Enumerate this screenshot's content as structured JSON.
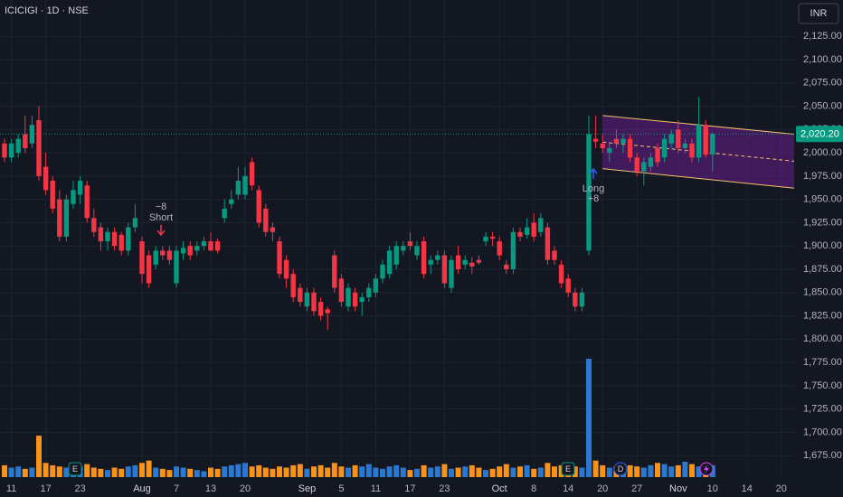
{
  "chart_data": {
    "type": "candlestick",
    "title": "ICICIGI · 1D · NSE",
    "currency": "INR",
    "categories": [
      null,
      "11",
      null,
      null,
      null,
      null,
      "17",
      null,
      null,
      null,
      null,
      "23",
      null,
      null,
      null,
      null,
      null,
      null,
      null,
      null,
      "Aug",
      null,
      null,
      null,
      null,
      "7",
      null,
      null,
      null,
      null,
      "13",
      null,
      null,
      null,
      null,
      "20",
      null,
      null,
      null,
      null,
      null,
      null,
      null,
      null,
      "Sep",
      null,
      null,
      null,
      null,
      "5",
      null,
      null,
      null,
      null,
      "11",
      null,
      null,
      null,
      null,
      "17",
      null,
      null,
      null,
      null,
      "23",
      null,
      null,
      null,
      null,
      null,
      null,
      null,
      "Oct",
      null,
      null,
      null,
      null,
      "8",
      null,
      null,
      null,
      null,
      "14",
      null,
      null,
      null,
      null,
      "20",
      null,
      null,
      null,
      null,
      "27",
      null,
      null,
      null,
      null,
      null,
      "Nov",
      null,
      null,
      null,
      null,
      "10",
      null,
      null,
      null,
      null,
      "14",
      null,
      null,
      null,
      null,
      "20",
      null
    ],
    "open": [
      2010,
      1995,
      2000,
      2020,
      2010,
      2035,
      1985,
      1970,
      1950,
      1910,
      1945,
      1955,
      1965,
      1930,
      1920,
      1905,
      1915,
      1912,
      1895,
      1920,
      1905,
      1890,
      1880,
      1895,
      1895,
      1860,
      1892,
      1900,
      1895,
      1900,
      1905,
      1905,
      1930,
      1945,
      1955,
      1955,
      1990,
      1960,
      1940,
      1920,
      1905,
      1885,
      1870,
      1855,
      1835,
      1850,
      1840,
      1832,
      1890,
      1865,
      1835,
      1850,
      1840,
      1845,
      1850,
      1865,
      1870,
      1880,
      1895,
      1905,
      1890,
      1905,
      1880,
      1885,
      1890,
      1855,
      1890,
      1880,
      1882,
      1885,
      1905,
      1910,
      1905,
      1880,
      1875,
      1915,
      1912,
      1925,
      1915,
      1920,
      1895,
      1880,
      1865,
      1850,
      1835,
      1895,
      2015,
      2010,
      2000,
      2015,
      2010,
      2015,
      1995,
      1980,
      1985,
      2005,
      1995,
      2010,
      2025,
      2005,
      2010,
      1995,
      2030,
      1998,
      null,
      null,
      null,
      null,
      null,
      null,
      null,
      null,
      null,
      null,
      null
    ],
    "high": [
      2015,
      2015,
      2020,
      2040,
      2040,
      2050,
      2000,
      1975,
      1960,
      1955,
      1970,
      1975,
      1970,
      1940,
      1925,
      1920,
      1920,
      1915,
      1925,
      1945,
      1910,
      1895,
      1900,
      1900,
      1900,
      1900,
      1905,
      1905,
      1905,
      1910,
      1915,
      1908,
      1950,
      1960,
      1985,
      1985,
      1995,
      1965,
      1945,
      1925,
      1910,
      1890,
      1875,
      1860,
      1855,
      1855,
      1845,
      1835,
      1895,
      1870,
      1860,
      1855,
      1850,
      1860,
      1870,
      1885,
      1900,
      1905,
      1905,
      1915,
      1905,
      1910,
      1890,
      1895,
      1895,
      1890,
      1900,
      1890,
      1888,
      1890,
      1915,
      1915,
      1910,
      1885,
      1920,
      1920,
      1930,
      1935,
      1935,
      1925,
      1900,
      1885,
      1870,
      1855,
      1855,
      2040,
      2040,
      2020,
      2010,
      2025,
      2020,
      2020,
      2000,
      1995,
      2000,
      2010,
      2020,
      2025,
      2035,
      2015,
      2015,
      2060,
      2035,
      2022,
      null,
      null,
      null,
      null,
      null,
      null,
      null,
      null,
      null,
      null,
      null
    ],
    "low": [
      1990,
      1990,
      1995,
      2000,
      2005,
      1970,
      1955,
      1935,
      1905,
      1905,
      1940,
      1945,
      1925,
      1910,
      1895,
      1895,
      1895,
      1890,
      1890,
      1915,
      1860,
      1855,
      1875,
      1885,
      1880,
      1855,
      1885,
      1885,
      1890,
      1895,
      1895,
      1892,
      1925,
      1940,
      1950,
      1950,
      1960,
      1920,
      1910,
      1905,
      1865,
      1855,
      1840,
      1835,
      1830,
      1825,
      1820,
      1810,
      1850,
      1835,
      1830,
      1830,
      1825,
      1840,
      1845,
      1860,
      1865,
      1875,
      1890,
      1895,
      1885,
      1865,
      1870,
      1880,
      1855,
      1850,
      1870,
      1875,
      1870,
      1880,
      1900,
      1900,
      1885,
      1870,
      1870,
      1905,
      1908,
      1905,
      1910,
      1880,
      1880,
      1855,
      1845,
      1830,
      1830,
      1890,
      2005,
      2000,
      1990,
      2005,
      2000,
      1990,
      1975,
      1965,
      1980,
      1985,
      1990,
      2005,
      2000,
      2000,
      1990,
      1990,
      1995,
      1980,
      null,
      null,
      null,
      null,
      null,
      null,
      null,
      null,
      null,
      null,
      null
    ],
    "close": [
      1995,
      2010,
      2015,
      2005,
      2030,
      1975,
      1960,
      1940,
      1910,
      1950,
      1960,
      1970,
      1930,
      1915,
      1905,
      1915,
      1900,
      1895,
      1920,
      1930,
      1870,
      1860,
      1895,
      1890,
      1885,
      1895,
      1898,
      1890,
      1900,
      1905,
      1895,
      1895,
      1940,
      1950,
      1970,
      1975,
      1965,
      1925,
      1915,
      1915,
      1870,
      1865,
      1845,
      1840,
      1850,
      1830,
      1825,
      1828,
      1855,
      1840,
      1855,
      1835,
      1845,
      1855,
      1865,
      1880,
      1895,
      1900,
      1900,
      1900,
      1900,
      1870,
      1885,
      1890,
      1860,
      1885,
      1875,
      1885,
      1878,
      1882,
      1910,
      1908,
      1890,
      1875,
      1915,
      1910,
      1920,
      1910,
      1930,
      1885,
      1885,
      1860,
      1850,
      1835,
      1850,
      2020,
      2012,
      2005,
      2005,
      2010,
      2015,
      1995,
      1980,
      1990,
      1995,
      1990,
      2015,
      2020,
      2005,
      2010,
      1995,
      2030,
      1998,
      2020.2,
      null,
      null,
      null,
      null,
      null,
      null,
      null,
      null,
      null,
      null,
      null
    ],
    "volume": [
      10,
      8,
      9,
      7,
      8,
      35,
      12,
      10,
      9,
      8,
      7,
      9,
      11,
      8,
      7,
      6,
      8,
      7,
      9,
      10,
      12,
      14,
      8,
      7,
      6,
      9,
      8,
      7,
      6,
      5,
      8,
      7,
      9,
      10,
      11,
      12,
      9,
      10,
      8,
      7,
      9,
      8,
      10,
      11,
      7,
      9,
      10,
      8,
      12,
      9,
      8,
      10,
      9,
      11,
      8,
      7,
      9,
      10,
      8,
      6,
      7,
      10,
      8,
      9,
      11,
      7,
      8,
      9,
      10,
      8,
      6,
      7,
      9,
      11,
      8,
      9,
      10,
      7,
      8,
      12,
      9,
      10,
      11,
      9,
      8,
      100,
      14,
      10,
      8,
      9,
      11,
      10,
      9,
      8,
      10,
      12,
      11,
      9,
      10,
      13,
      11,
      9,
      12,
      10,
      null,
      null,
      null,
      null,
      null,
      null,
      null,
      null,
      null,
      null,
      null
    ],
    "up_color": "#089981",
    "down_color": "#f23645",
    "volume_up_color": "#2b78d0",
    "volume_down_color": "#f7931a",
    "ylim": [
      1650,
      2164
    ],
    "yticks": [
      {
        "value": 1675,
        "label": "1,675.00"
      },
      {
        "value": 1700,
        "label": "1,700.00"
      },
      {
        "value": 1725,
        "label": "1,725.00"
      },
      {
        "value": 1750,
        "label": "1,750.00"
      },
      {
        "value": 1775,
        "label": "1,775.00"
      },
      {
        "value": 1800,
        "label": "1,800.00"
      },
      {
        "value": 1825,
        "label": "1,825.00"
      },
      {
        "value": 1850,
        "label": "1,850.00"
      },
      {
        "value": 1875,
        "label": "1,875.00"
      },
      {
        "value": 1900,
        "label": "1,900.00"
      },
      {
        "value": 1925,
        "label": "1,925.00"
      },
      {
        "value": 1950,
        "label": "1,950.00"
      },
      {
        "value": 1975,
        "label": "1,975.00"
      },
      {
        "value": 2000,
        "label": "2,000.00"
      },
      {
        "value": 2025,
        "label": "2,025.00"
      },
      {
        "value": 2050,
        "label": "2,050.00"
      },
      {
        "value": 2075,
        "label": "2,075.00"
      },
      {
        "value": 2100,
        "label": "2,100.00"
      },
      {
        "value": 2125,
        "label": "2,125.00"
      }
    ],
    "grid": true,
    "last_price": {
      "value": 2020.2,
      "label": "2,020.20"
    },
    "channel": {
      "top": [
        2040,
        2020
      ],
      "bottom": [
        1983,
        1962
      ],
      "color": "#7b1fa2"
    },
    "trades": [
      {
        "qty": "−8",
        "label": "Short"
      },
      {
        "qty": "+8",
        "label": "Long"
      }
    ],
    "events": [
      "E",
      "E",
      "D"
    ]
  }
}
